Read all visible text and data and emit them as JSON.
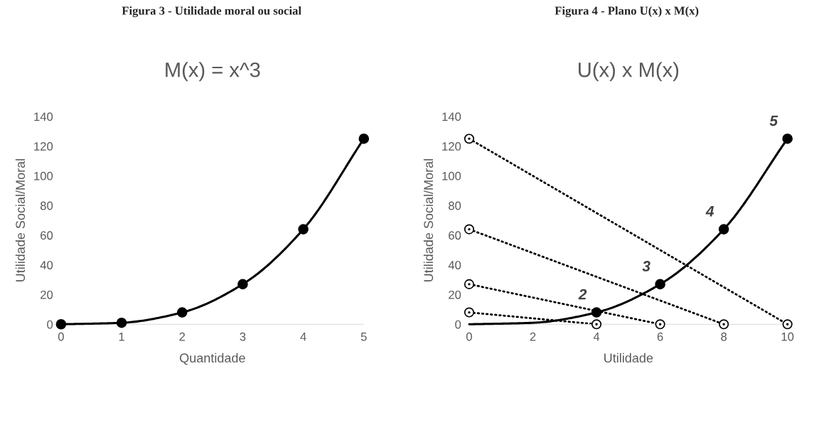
{
  "chart_data": [
    {
      "type": "line",
      "title": "Figura 3 - Utilidade moral ou social",
      "subtitle": "M(x) = x^3",
      "xlabel": "Quantidade",
      "ylabel": "Utilidade Social/Moral",
      "x": [
        0,
        1,
        2,
        3,
        4,
        5
      ],
      "series": [
        {
          "color": "#000000",
          "values": [
            0,
            1,
            8,
            27,
            64,
            125
          ],
          "marker": "circle",
          "line_style": "solid"
        }
      ],
      "xlim": [
        0,
        5
      ],
      "xticks": [
        0,
        1,
        2,
        3,
        4,
        5
      ],
      "ylim": [
        0,
        140
      ],
      "yticks": [
        0,
        20,
        40,
        60,
        80,
        100,
        120,
        140
      ],
      "grid": false,
      "legend": false
    },
    {
      "type": "line",
      "title": "Figura 4 - Plano U(x) x M(x)",
      "subtitle": "U(x) x M(x)",
      "xlabel": "Utilidade",
      "ylabel": "Utilidade Social/Moral",
      "series": [
        {
          "color": "#000000",
          "x": [
            0,
            2,
            4,
            6,
            8,
            10
          ],
          "values": [
            0,
            1,
            8,
            27,
            64,
            125
          ],
          "marker": "none",
          "line_style": "solid"
        },
        {
          "type": "scatter",
          "color": "#000000",
          "x": [
            4,
            6,
            8,
            10
          ],
          "values": [
            8,
            27,
            64,
            125
          ],
          "marker": "circle"
        },
        {
          "color": "#000000",
          "x": [
            0,
            4
          ],
          "values": [
            8,
            0
          ],
          "marker": "circle",
          "line_style": "dotted"
        },
        {
          "color": "#000000",
          "x": [
            0,
            6
          ],
          "values": [
            27,
            0
          ],
          "marker": "circle",
          "line_style": "dotted"
        },
        {
          "color": "#000000",
          "x": [
            0,
            8
          ],
          "values": [
            64,
            0
          ],
          "marker": "circle",
          "line_style": "dotted"
        },
        {
          "color": "#000000",
          "x": [
            0,
            10
          ],
          "values": [
            125,
            0
          ],
          "marker": "circle",
          "line_style": "dotted"
        }
      ],
      "annotations": [
        {
          "text": "2",
          "x": 4,
          "y": 8
        },
        {
          "text": "3",
          "x": 6,
          "y": 27
        },
        {
          "text": "4",
          "x": 8,
          "y": 64
        },
        {
          "text": "5",
          "x": 10,
          "y": 125
        }
      ],
      "xlim": [
        0,
        10
      ],
      "xticks": [
        0,
        2,
        4,
        6,
        8,
        10
      ],
      "ylim": [
        0,
        140
      ],
      "yticks": [
        0,
        20,
        40,
        60,
        80,
        100,
        120,
        140
      ],
      "grid": false,
      "legend": false
    }
  ]
}
